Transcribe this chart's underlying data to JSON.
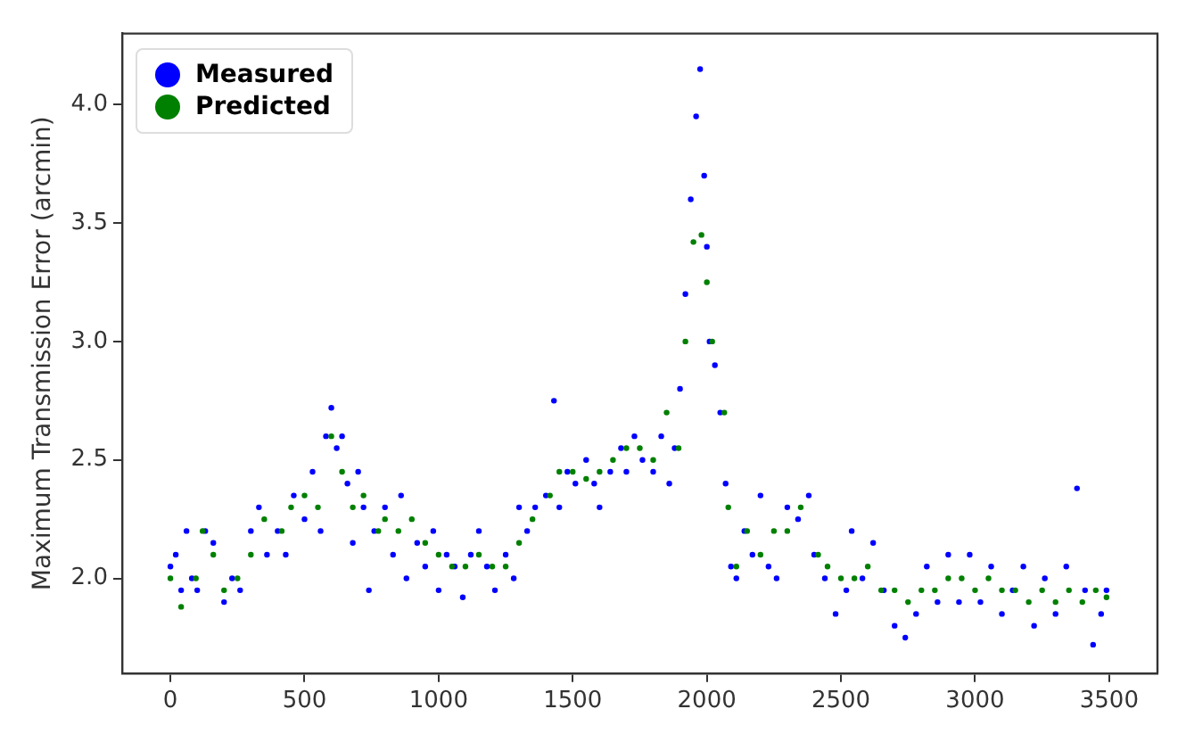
{
  "chart_data": {
    "type": "scatter",
    "ylabel": "Maximum Transmission Error (arcmin)",
    "xlim": [
      -180,
      3680
    ],
    "ylim": [
      1.6,
      4.3
    ],
    "xticks": [
      0,
      500,
      1000,
      1500,
      2000,
      2500,
      3000,
      3500
    ],
    "yticks": [
      {
        "value": 2.0,
        "label": "2.0"
      },
      {
        "value": 2.5,
        "label": "2.5"
      },
      {
        "value": 3.0,
        "label": "3.0"
      },
      {
        "value": 3.5,
        "label": "3.5"
      },
      {
        "value": 4.0,
        "label": "4.0"
      }
    ],
    "grid": false,
    "legend": "top left",
    "marker": "circle",
    "series": [
      {
        "name": "Measured",
        "color": "#0000ff",
        "x": [
          0,
          20,
          40,
          60,
          80,
          100,
          130,
          160,
          200,
          230,
          260,
          300,
          330,
          360,
          400,
          430,
          460,
          500,
          530,
          560,
          580,
          600,
          620,
          640,
          660,
          680,
          700,
          720,
          740,
          760,
          800,
          830,
          860,
          880,
          920,
          950,
          980,
          1000,
          1030,
          1060,
          1090,
          1120,
          1150,
          1180,
          1210,
          1250,
          1280,
          1300,
          1330,
          1360,
          1400,
          1430,
          1450,
          1480,
          1510,
          1550,
          1580,
          1600,
          1640,
          1680,
          1700,
          1730,
          1760,
          1800,
          1830,
          1860,
          1880,
          1900,
          1920,
          1940,
          1960,
          1975,
          1990,
          2000,
          2010,
          2030,
          2050,
          2070,
          2090,
          2110,
          2140,
          2170,
          2200,
          2230,
          2260,
          2300,
          2340,
          2380,
          2400,
          2440,
          2480,
          2520,
          2540,
          2580,
          2620,
          2660,
          2700,
          2740,
          2780,
          2820,
          2860,
          2900,
          2940,
          2980,
          3020,
          3060,
          3100,
          3140,
          3180,
          3220,
          3260,
          3300,
          3340,
          3380,
          3410,
          3440,
          3470,
          3490
        ],
        "values": [
          2.05,
          2.1,
          1.95,
          2.2,
          2.0,
          1.95,
          2.2,
          2.15,
          1.9,
          2.0,
          1.95,
          2.2,
          2.3,
          2.1,
          2.2,
          2.1,
          2.35,
          2.25,
          2.45,
          2.2,
          2.6,
          2.72,
          2.55,
          2.6,
          2.4,
          2.15,
          2.45,
          2.3,
          1.95,
          2.2,
          2.3,
          2.1,
          2.35,
          2.0,
          2.15,
          2.05,
          2.2,
          1.95,
          2.1,
          2.05,
          1.92,
          2.1,
          2.2,
          2.05,
          1.95,
          2.1,
          2.0,
          2.3,
          2.2,
          2.3,
          2.35,
          2.75,
          2.3,
          2.45,
          2.4,
          2.5,
          2.4,
          2.3,
          2.45,
          2.55,
          2.45,
          2.6,
          2.5,
          2.45,
          2.6,
          2.4,
          2.55,
          2.8,
          3.2,
          3.6,
          3.95,
          4.15,
          3.7,
          3.4,
          3.0,
          2.9,
          2.7,
          2.4,
          2.05,
          2.0,
          2.2,
          2.1,
          2.35,
          2.05,
          2.0,
          2.3,
          2.25,
          2.35,
          2.1,
          2.0,
          1.85,
          1.95,
          2.2,
          2.0,
          2.15,
          1.95,
          1.8,
          1.75,
          1.85,
          2.05,
          1.9,
          2.1,
          1.9,
          2.1,
          1.9,
          2.05,
          1.85,
          1.95,
          2.05,
          1.8,
          2.0,
          1.85,
          2.05,
          2.38,
          1.95,
          1.72,
          1.85,
          1.95
        ]
      },
      {
        "name": "Predicted",
        "color": "#008000",
        "x": [
          0,
          40,
          95,
          120,
          160,
          200,
          250,
          300,
          350,
          415,
          450,
          500,
          550,
          600,
          640,
          680,
          720,
          775,
          800,
          850,
          900,
          950,
          1000,
          1050,
          1100,
          1150,
          1200,
          1250,
          1300,
          1350,
          1415,
          1450,
          1500,
          1550,
          1600,
          1650,
          1700,
          1750,
          1800,
          1850,
          1895,
          1920,
          1950,
          1980,
          2000,
          2020,
          2065,
          2080,
          2110,
          2150,
          2200,
          2250,
          2300,
          2350,
          2415,
          2450,
          2500,
          2550,
          2600,
          2650,
          2700,
          2750,
          2800,
          2850,
          2900,
          2950,
          3000,
          3050,
          3100,
          3150,
          3200,
          3250,
          3300,
          3350,
          3400,
          3450,
          3490
        ],
        "values": [
          2.0,
          1.88,
          2.0,
          2.2,
          2.1,
          1.95,
          2.0,
          2.1,
          2.25,
          2.2,
          2.3,
          2.35,
          2.3,
          2.6,
          2.45,
          2.3,
          2.35,
          2.2,
          2.25,
          2.2,
          2.25,
          2.15,
          2.1,
          2.05,
          2.05,
          2.1,
          2.05,
          2.05,
          2.15,
          2.25,
          2.35,
          2.45,
          2.45,
          2.42,
          2.45,
          2.5,
          2.55,
          2.55,
          2.5,
          2.7,
          2.55,
          3.0,
          3.42,
          3.45,
          3.25,
          3.0,
          2.7,
          2.3,
          2.05,
          2.2,
          2.1,
          2.2,
          2.2,
          2.3,
          2.1,
          2.05,
          2.0,
          2.0,
          2.05,
          1.95,
          1.95,
          1.9,
          1.95,
          1.95,
          2.0,
          2.0,
          1.95,
          2.0,
          1.95,
          1.95,
          1.9,
          1.95,
          1.9,
          1.95,
          1.9,
          1.95,
          1.92
        ]
      }
    ]
  }
}
